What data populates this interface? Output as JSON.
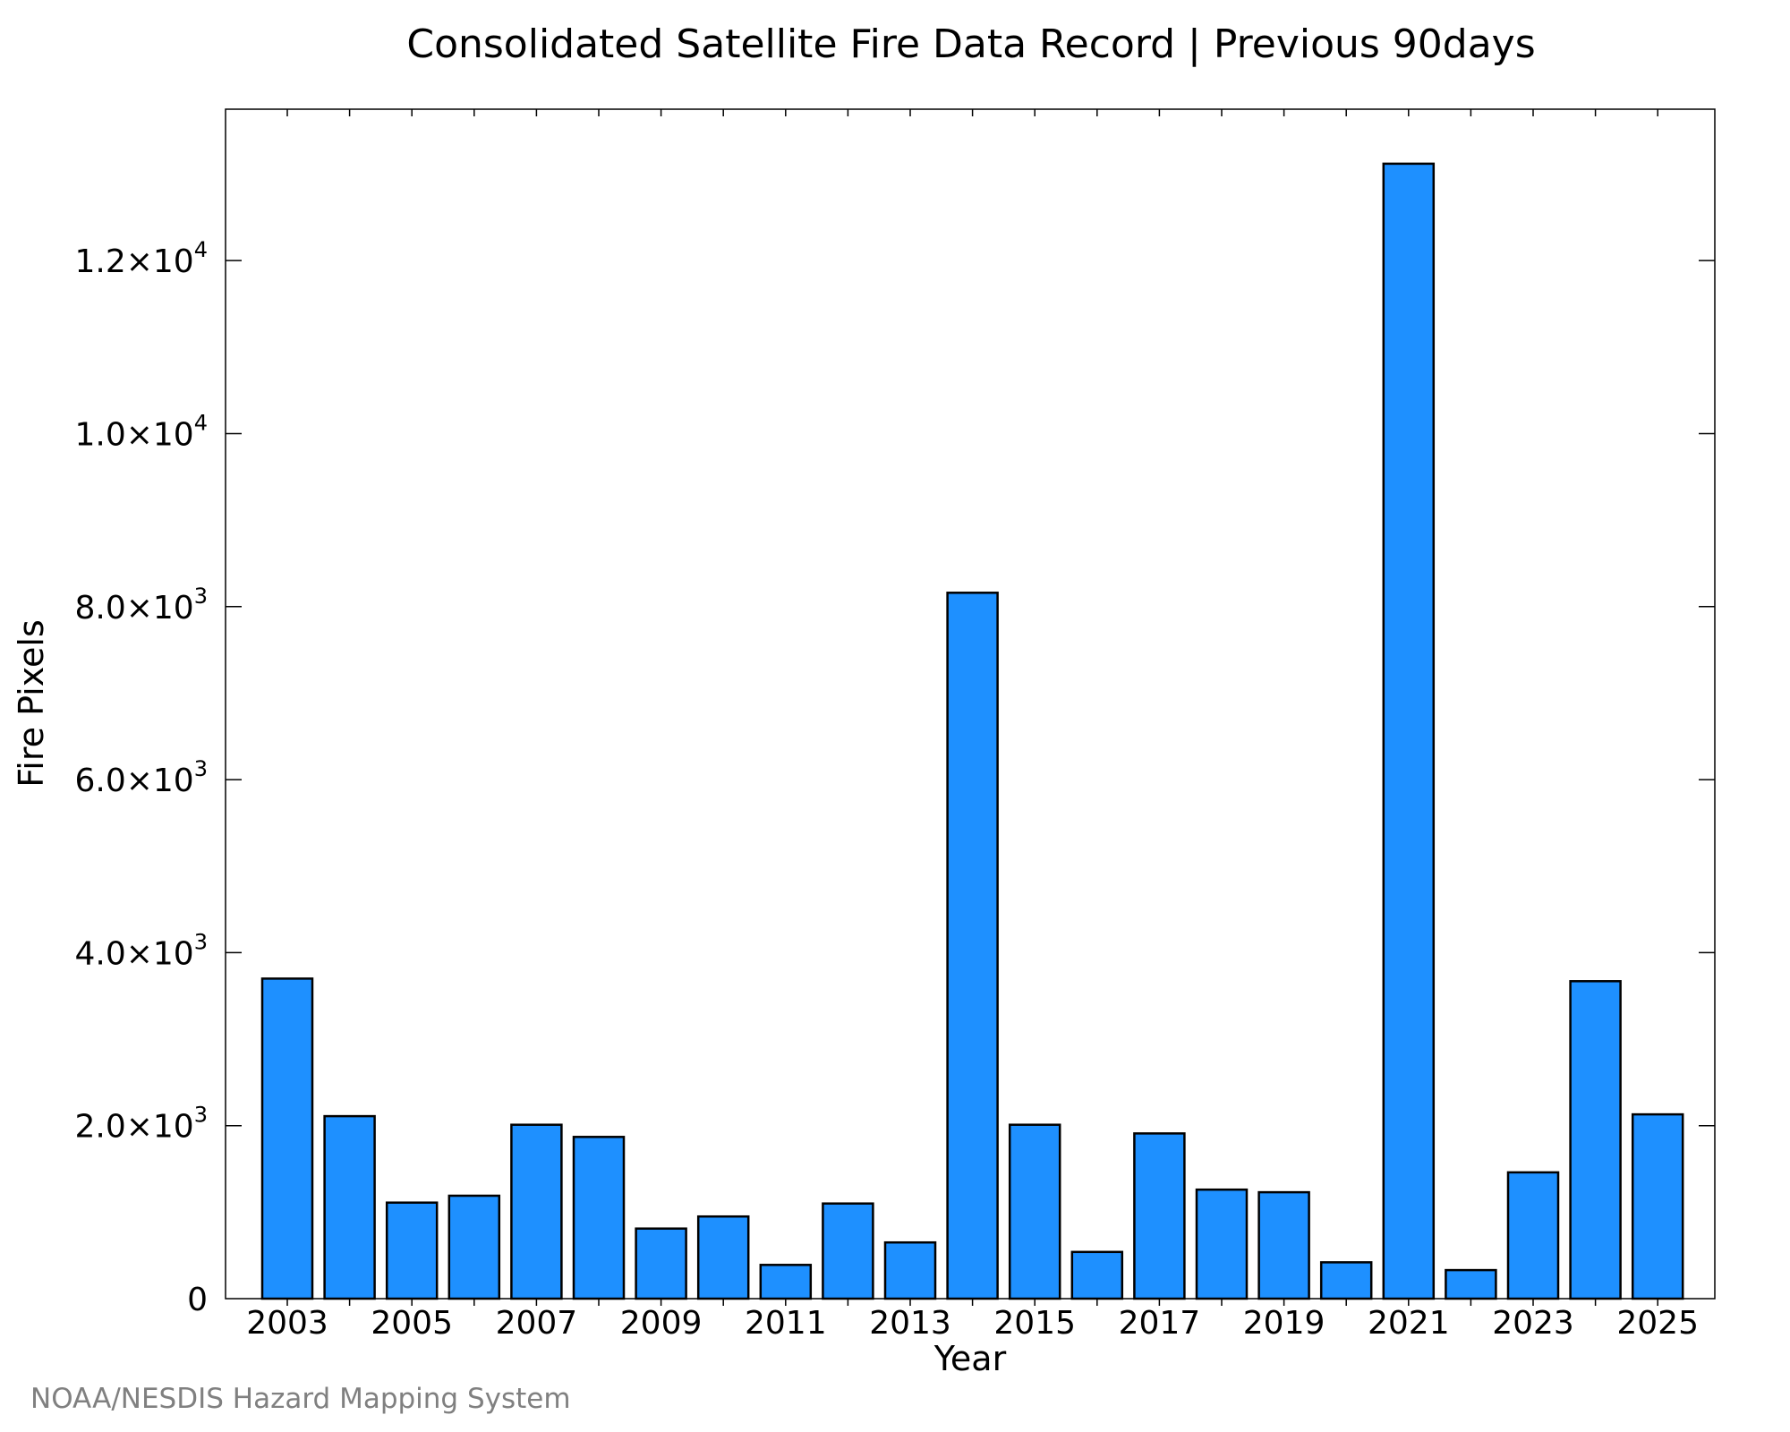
{
  "chart_data": {
    "type": "bar",
    "title": "Consolidated Satellite Fire Data Record | Previous 90days",
    "xlabel": "Year",
    "ylabel": "Fire Pixels",
    "categories": [
      "2003",
      "2004",
      "2005",
      "2006",
      "2007",
      "2008",
      "2009",
      "2010",
      "2011",
      "2012",
      "2013",
      "2014",
      "2015",
      "2016",
      "2017",
      "2018",
      "2019",
      "2020",
      "2021",
      "2022",
      "2023",
      "2024",
      "2025"
    ],
    "values": [
      3700,
      2110,
      1110,
      1190,
      2010,
      1870,
      810,
      950,
      390,
      1100,
      650,
      8160,
      2010,
      540,
      1910,
      1260,
      1230,
      420,
      13120,
      330,
      1460,
      3670,
      2130
    ],
    "ylim": [
      0,
      13750
    ],
    "x_tick_labels": [
      "2003",
      "2005",
      "2007",
      "2009",
      "2011",
      "2013",
      "2015",
      "2017",
      "2019",
      "2021",
      "2023",
      "2025"
    ],
    "y_ticks": [
      {
        "value": 0,
        "mantissa": "0",
        "exponent": ""
      },
      {
        "value": 2000,
        "mantissa": "2.0×10",
        "exponent": "3"
      },
      {
        "value": 4000,
        "mantissa": "4.0×10",
        "exponent": "3"
      },
      {
        "value": 6000,
        "mantissa": "6.0×10",
        "exponent": "3"
      },
      {
        "value": 8000,
        "mantissa": "8.0×10",
        "exponent": "3"
      },
      {
        "value": 10000,
        "mantissa": "1.0×10",
        "exponent": "4"
      },
      {
        "value": 12000,
        "mantissa": "1.2×10",
        "exponent": "4"
      }
    ],
    "bar_color": "#1e90ff",
    "bar_edge_color": "#000000",
    "grid": false,
    "legend": "none"
  },
  "credit": "NOAA/NESDIS Hazard Mapping System",
  "credit_color": "#808080"
}
